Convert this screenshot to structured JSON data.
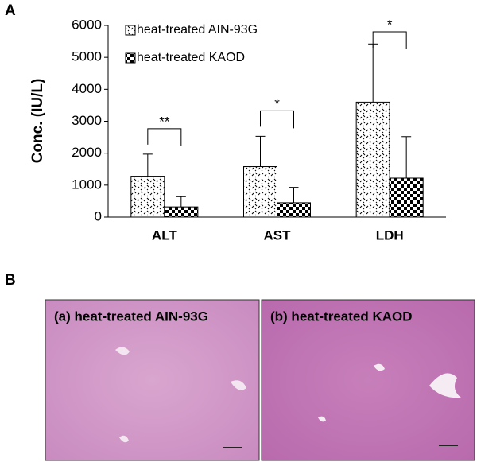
{
  "panel_a": "A",
  "panel_b": "B",
  "chart_data": {
    "type": "bar",
    "y_label": "Conc. (IU/L)",
    "categories": [
      "ALT",
      "AST",
      "LDH"
    ],
    "series": [
      {
        "name": "heat-treated AIN-93G",
        "values": [
          1280,
          1580,
          3600
        ],
        "errors": [
          690,
          950,
          1820
        ]
      },
      {
        "name": "heat-treated KAOD",
        "values": [
          320,
          450,
          1220
        ],
        "errors": [
          320,
          480,
          1300
        ]
      }
    ],
    "significance": [
      "**",
      "*",
      "*"
    ],
    "ylim": [
      0,
      6000
    ],
    "yticks": [
      0,
      1000,
      2000,
      3000,
      4000,
      5000,
      6000
    ]
  },
  "images": [
    {
      "label": "(a) heat-treated AIN-93G"
    },
    {
      "label": "(b) heat-treated KAOD"
    }
  ]
}
